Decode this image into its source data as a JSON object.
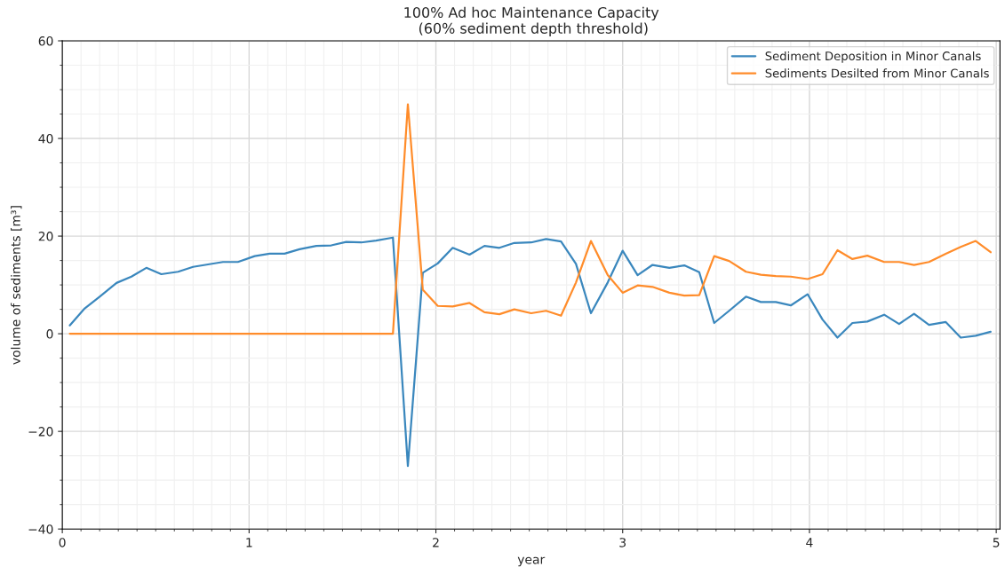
{
  "chart_data": {
    "type": "line",
    "title": "100% Ad hoc Maintenance Capacity\n (60% sediment depth threshold)",
    "xlabel": "year",
    "ylabel": "volume of sediments [m³]",
    "x": [
      0.04,
      0.12,
      0.2,
      0.29,
      0.37,
      0.45,
      0.53,
      0.62,
      0.7,
      0.78,
      0.86,
      0.94,
      1.03,
      1.11,
      1.19,
      1.27,
      1.36,
      1.44,
      1.52,
      1.6,
      1.68,
      1.77,
      1.85,
      1.93,
      2.01,
      2.09,
      2.18,
      2.26,
      2.34,
      2.42,
      2.51,
      2.59,
      2.67,
      2.75,
      2.83,
      2.92,
      3.0,
      3.08,
      3.16,
      3.25,
      3.33,
      3.41,
      3.49,
      3.57,
      3.66,
      3.74,
      3.82,
      3.9,
      3.99,
      4.07,
      4.15,
      4.23,
      4.31,
      4.4,
      4.48,
      4.56,
      4.64,
      4.73,
      4.81,
      4.89,
      4.97
    ],
    "series": [
      {
        "name": "Sediment Deposition in Minor Canals",
        "color": "#3a87bd",
        "values": [
          1.7,
          5.2,
          7.6,
          10.4,
          11.7,
          13.5,
          12.2,
          12.7,
          13.7,
          14.2,
          14.7,
          14.7,
          15.9,
          16.4,
          16.4,
          17.3,
          18.0,
          18.1,
          18.8,
          18.7,
          19.1,
          19.7,
          -27.1,
          12.5,
          14.4,
          17.6,
          16.2,
          18.0,
          17.6,
          18.6,
          18.7,
          19.4,
          18.9,
          14.3,
          4.2,
          10.5,
          17.0,
          12.0,
          14.1,
          13.5,
          14.0,
          12.6,
          2.2,
          4.7,
          7.6,
          6.5,
          6.5,
          5.8,
          8.1,
          2.9,
          -0.8,
          2.2,
          2.5,
          3.9,
          2.0,
          4.1,
          1.8,
          2.4,
          -0.8,
          -0.4,
          0.4
        ]
      },
      {
        "name": "Sediments Desilted from Minor Canals",
        "color": "#ff8c2a",
        "values": [
          0,
          0,
          0,
          0,
          0,
          0,
          0,
          0,
          0,
          0,
          0,
          0,
          0,
          0,
          0,
          0,
          0,
          0,
          0,
          0,
          0,
          0,
          47.0,
          9.0,
          5.7,
          5.6,
          6.3,
          4.4,
          4.0,
          5.0,
          4.2,
          4.7,
          3.7,
          10.5,
          19.0,
          12.0,
          8.4,
          9.9,
          9.6,
          8.4,
          7.8,
          7.9,
          15.9,
          14.9,
          12.7,
          12.1,
          11.8,
          11.7,
          11.2,
          12.2,
          17.1,
          15.3,
          16.0,
          14.7,
          14.7,
          14.1,
          14.7,
          16.4,
          17.8,
          19.0,
          16.7
        ]
      }
    ],
    "xlim": [
      0,
      5.02
    ],
    "xticks": [
      0,
      1,
      2,
      3,
      4,
      5
    ],
    "ylim": [
      -40,
      60
    ],
    "yticks": [
      -40,
      -20,
      0,
      20,
      40,
      60
    ],
    "grid": true,
    "legend": "top right",
    "marker": "none",
    "line_style": "solid"
  }
}
